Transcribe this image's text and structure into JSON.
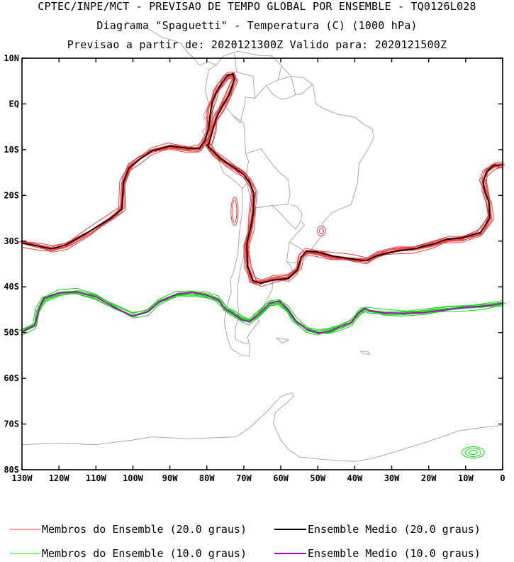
{
  "header": {
    "line1": "CPTEC/INPE/MCT - PREVISAO DE TEMPO GLOBAL POR ENSEMBLE - TQ0126L028",
    "line2": "Diagrama \"Spaguetti\" - Temperatura (C) (1000 hPa)",
    "line3": "Previsao a partir de: 2020121300Z  Valido para: 2020121500Z"
  },
  "colors": {
    "member_20": "#f04040",
    "mean_20": "#000000",
    "member_10": "#18d818",
    "mean_10": "#b000c8",
    "land": "#a8a8a8"
  },
  "chart_data": {
    "type": "line",
    "title": "Diagrama \"Spaguetti\" - Temperatura (C) (1000 hPa)",
    "x_axis": {
      "lim": [
        -130,
        0
      ],
      "ticks": [
        -130,
        -120,
        -110,
        -100,
        -90,
        -80,
        -70,
        -60,
        -50,
        -40,
        -30,
        -20,
        -10,
        0
      ],
      "tick_labels": [
        "130W",
        "120W",
        "110W",
        "100W",
        "90W",
        "80W",
        "70W",
        "60W",
        "50W",
        "40W",
        "30W",
        "20W",
        "10W",
        "0"
      ]
    },
    "y_axis": {
      "lim": [
        -80,
        10
      ],
      "ticks": [
        10,
        0,
        -10,
        -20,
        -30,
        -40,
        -50,
        -60,
        -70,
        -80
      ],
      "tick_labels": [
        "10N",
        "EQ",
        "10S",
        "20S",
        "30S",
        "40S",
        "50S",
        "60S",
        "70S",
        "80S"
      ]
    },
    "legend": [
      {
        "label": "Membros do Ensemble (20.0 graus)",
        "color": "#f04040"
      },
      {
        "label": "Ensemble Medio (20.0 graus)",
        "color": "#000000"
      },
      {
        "label": "Membros do Ensemble (10.0 graus)",
        "color": "#18d818"
      },
      {
        "label": "Ensemble Medio (10.0 graus)",
        "color": "#b000c8"
      }
    ],
    "series": [
      {
        "name": "Ensemble Medio (20.0 graus)",
        "lon": [
          -130,
          -125,
          -122,
          -118,
          -112,
          -106,
          -103,
          -102.5,
          -101,
          -98,
          -95,
          -90,
          -85,
          -82,
          -80.5,
          -79.5,
          -79,
          -78.5,
          -77.5,
          -76,
          -74.5,
          -73,
          -72.5,
          -74,
          -76,
          -77.5,
          -78.5,
          -79.5,
          -80,
          -79,
          -78,
          -76.5,
          -74.5,
          -72,
          -70,
          -68.5,
          -67.3,
          -67.5,
          -68.2,
          -69.2,
          -69,
          -67.5,
          -65.5,
          -62,
          -58,
          -55.5,
          -54.5,
          -53,
          -50,
          -46,
          -41,
          -37,
          -34,
          -29,
          -24,
          -19,
          -15,
          -11,
          -6,
          -3.5,
          -3.7,
          -4.8,
          -5.3,
          -4.3,
          -2.5,
          0
        ],
        "lat": [
          -30.4,
          -31.2,
          -31.7,
          -30.8,
          -28,
          -25,
          -23,
          -17,
          -14,
          -12,
          -10.3,
          -9.2,
          -9.7,
          -9.7,
          -8,
          -5.5,
          -1.5,
          0.5,
          2.5,
          4.5,
          6.2,
          6.6,
          5.4,
          2,
          -0.8,
          -3.2,
          -6,
          -8.8,
          -9,
          -9.8,
          -10.6,
          -11.8,
          -13,
          -14.3,
          -15.5,
          -17,
          -19.5,
          -24,
          -27.3,
          -30.5,
          -35.5,
          -38.7,
          -39.2,
          -38.5,
          -38.2,
          -36.3,
          -33.5,
          -32.2,
          -32.4,
          -33.3,
          -33.9,
          -34.3,
          -33.2,
          -32.2,
          -31.7,
          -30.7,
          -29.6,
          -29.3,
          -28.1,
          -25,
          -21.5,
          -19.2,
          -17,
          -14.8,
          -13.5,
          -13.3
        ]
      },
      {
        "name": "Ensemble Medio (10.0 graus)",
        "lon": [
          -130,
          -126.5,
          -125.5,
          -124,
          -120,
          -115,
          -110,
          -105,
          -100,
          -96,
          -93,
          -88,
          -84,
          -80,
          -77,
          -75,
          -73,
          -70.5,
          -68.5,
          -66,
          -63,
          -60.5,
          -58.2,
          -56,
          -53,
          -50,
          -47,
          -44,
          -41,
          -38.8,
          -37.3,
          -36,
          -32,
          -27,
          -21,
          -15,
          -10,
          -5,
          0
        ],
        "lat": [
          -49.8,
          -48.4,
          -45,
          -42.5,
          -41.3,
          -41.1,
          -42.2,
          -44.5,
          -46.4,
          -45.5,
          -43.3,
          -41.6,
          -41.2,
          -41.8,
          -42.8,
          -44.8,
          -45.8,
          -47.2,
          -47.6,
          -46,
          -43.6,
          -43.1,
          -44.8,
          -47.4,
          -49.3,
          -50.1,
          -49.8,
          -48.8,
          -47.8,
          -45.6,
          -44.7,
          -45.2,
          -45.7,
          -45.8,
          -45.6,
          -45,
          -44.5,
          -44.2,
          -43.6
        ]
      }
    ]
  },
  "legend_labels": {
    "member_20": "Membros do Ensemble (20.0 graus)",
    "mean_20": "Ensemble Medio (20.0 graus)",
    "member_10": "Membros do Ensemble (10.0 graus)",
    "mean_10": "Ensemble Medio (10.0 graus)"
  }
}
